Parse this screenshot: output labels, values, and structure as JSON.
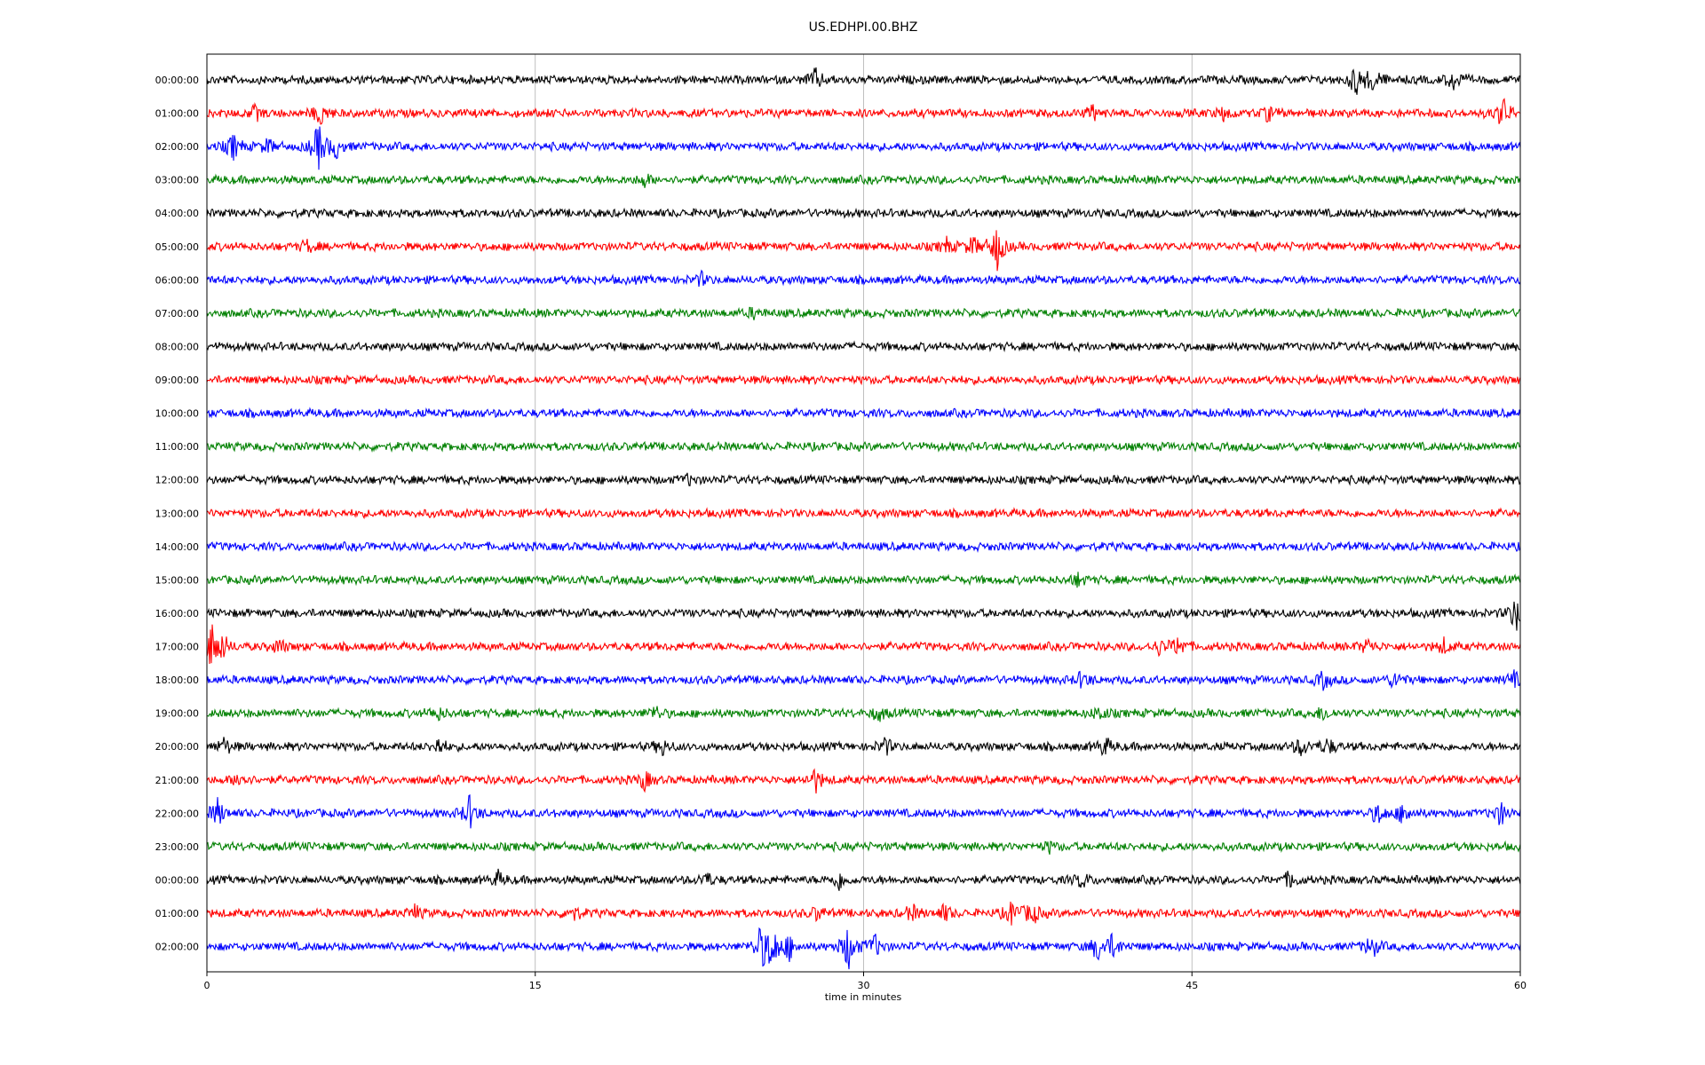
{
  "chart_data": {
    "type": "line",
    "title": "US.EDHPI.00.BHZ",
    "xlabel": "time in minutes",
    "ylabel": "",
    "xlim": [
      0,
      60
    ],
    "xticks": [
      0,
      15,
      30,
      45,
      60
    ],
    "xtick_labels": [
      "0",
      "15",
      "30",
      "45",
      "60"
    ],
    "vertical_gridlines_at": [
      15,
      30,
      45
    ],
    "grid": true,
    "trace_color_cycle": [
      "#000000",
      "#ff0000",
      "#0000ff",
      "#008000"
    ],
    "rows": [
      {
        "label": "00:00:00",
        "events": [
          {
            "t": 27.8,
            "amp": 0.45
          },
          {
            "t": 52.5,
            "amp": 0.65
          },
          {
            "t": 53.3,
            "amp": 0.55
          },
          {
            "t": 57.0,
            "amp": 0.5
          }
        ]
      },
      {
        "label": "01:00:00",
        "events": [
          {
            "t": 2.2,
            "amp": 0.3
          },
          {
            "t": 5.2,
            "amp": 0.5
          },
          {
            "t": 40.5,
            "amp": 0.3
          },
          {
            "t": 46.5,
            "amp": 0.3
          },
          {
            "t": 48.5,
            "amp": 0.3
          },
          {
            "t": 59.2,
            "amp": 0.7
          }
        ]
      },
      {
        "label": "02:00:00",
        "events": [
          {
            "t": 1.2,
            "amp": 0.55
          },
          {
            "t": 2.8,
            "amp": 0.3
          },
          {
            "t": 5.1,
            "amp": 1.0
          },
          {
            "t": 5.9,
            "amp": 0.45
          }
        ]
      },
      {
        "label": "03:00:00",
        "events": [
          {
            "t": 20.0,
            "amp": 0.25
          }
        ]
      },
      {
        "label": "04:00:00",
        "events": []
      },
      {
        "label": "05:00:00",
        "events": [
          {
            "t": 4.6,
            "amp": 0.25
          },
          {
            "t": 33.8,
            "amp": 0.3
          },
          {
            "t": 35.0,
            "amp": 0.4
          },
          {
            "t": 36.1,
            "amp": 1.0
          }
        ]
      },
      {
        "label": "06:00:00",
        "events": [
          {
            "t": 22.6,
            "amp": 0.25
          }
        ]
      },
      {
        "label": "07:00:00",
        "events": [
          {
            "t": 25.0,
            "amp": 0.2
          }
        ]
      },
      {
        "label": "08:00:00",
        "events": []
      },
      {
        "label": "09:00:00",
        "events": []
      },
      {
        "label": "10:00:00",
        "events": []
      },
      {
        "label": "11:00:00",
        "events": []
      },
      {
        "label": "12:00:00",
        "events": [
          {
            "t": 22.0,
            "amp": 0.2
          }
        ]
      },
      {
        "label": "13:00:00",
        "events": []
      },
      {
        "label": "14:00:00",
        "events": []
      },
      {
        "label": "15:00:00",
        "events": [
          {
            "t": 39.8,
            "amp": 0.25
          }
        ]
      },
      {
        "label": "16:00:00",
        "events": [
          {
            "t": 59.8,
            "amp": 0.8
          }
        ]
      },
      {
        "label": "17:00:00",
        "events": [
          {
            "t": 0.2,
            "amp": 1.0
          },
          {
            "t": 0.7,
            "amp": 0.5
          },
          {
            "t": 3.3,
            "amp": 0.3
          },
          {
            "t": 43.5,
            "amp": 0.3
          },
          {
            "t": 44.4,
            "amp": 0.45
          },
          {
            "t": 53.0,
            "amp": 0.3
          },
          {
            "t": 56.5,
            "amp": 0.3
          }
        ]
      },
      {
        "label": "18:00:00",
        "events": [
          {
            "t": 40.0,
            "amp": 0.35
          },
          {
            "t": 51.0,
            "amp": 0.35
          },
          {
            "t": 54.3,
            "amp": 0.35
          },
          {
            "t": 59.7,
            "amp": 0.3
          }
        ]
      },
      {
        "label": "19:00:00",
        "events": [
          {
            "t": 10.5,
            "amp": 0.3
          },
          {
            "t": 20.5,
            "amp": 0.3
          },
          {
            "t": 30.7,
            "amp": 0.3
          },
          {
            "t": 40.8,
            "amp": 0.3
          },
          {
            "t": 51.0,
            "amp": 0.3
          }
        ]
      },
      {
        "label": "20:00:00",
        "events": [
          {
            "t": 0.8,
            "amp": 0.35
          },
          {
            "t": 10.6,
            "amp": 0.35
          },
          {
            "t": 20.8,
            "amp": 0.35
          },
          {
            "t": 31.0,
            "amp": 0.35
          },
          {
            "t": 41.0,
            "amp": 0.4
          },
          {
            "t": 50.0,
            "amp": 0.4
          },
          {
            "t": 51.2,
            "amp": 0.35
          }
        ]
      },
      {
        "label": "21:00:00",
        "events": [
          {
            "t": 1.5,
            "amp": 0.35
          },
          {
            "t": 20.0,
            "amp": 0.4
          },
          {
            "t": 27.8,
            "amp": 0.5
          }
        ]
      },
      {
        "label": "22:00:00",
        "events": [
          {
            "t": 0.5,
            "amp": 0.6
          },
          {
            "t": 12.0,
            "amp": 0.7
          },
          {
            "t": 53.5,
            "amp": 0.45
          },
          {
            "t": 54.7,
            "amp": 0.5
          },
          {
            "t": 59.1,
            "amp": 0.5
          }
        ]
      },
      {
        "label": "23:00:00",
        "events": [
          {
            "t": 38.5,
            "amp": 0.2
          }
        ]
      },
      {
        "label": "00:00:00",
        "events": [
          {
            "t": 13.3,
            "amp": 0.3
          },
          {
            "t": 22.8,
            "amp": 0.3
          },
          {
            "t": 28.9,
            "amp": 0.4
          },
          {
            "t": 40.0,
            "amp": 0.35
          },
          {
            "t": 49.5,
            "amp": 0.35
          }
        ]
      },
      {
        "label": "01:00:00",
        "events": [
          {
            "t": 9.5,
            "amp": 0.3
          },
          {
            "t": 16.7,
            "amp": 0.35
          },
          {
            "t": 27.9,
            "amp": 0.3
          },
          {
            "t": 32.2,
            "amp": 0.35
          },
          {
            "t": 33.7,
            "amp": 0.35
          },
          {
            "t": 36.8,
            "amp": 0.55
          },
          {
            "t": 37.7,
            "amp": 0.5
          }
        ]
      },
      {
        "label": "02:00:00",
        "events": [
          {
            "t": 25.3,
            "amp": 0.85
          },
          {
            "t": 25.8,
            "amp": 1.0
          },
          {
            "t": 26.6,
            "amp": 0.5
          },
          {
            "t": 29.3,
            "amp": 1.0
          },
          {
            "t": 30.5,
            "amp": 0.5
          },
          {
            "t": 40.7,
            "amp": 0.55
          },
          {
            "t": 41.4,
            "amp": 0.5
          },
          {
            "t": 53.2,
            "amp": 0.5
          }
        ]
      }
    ]
  }
}
